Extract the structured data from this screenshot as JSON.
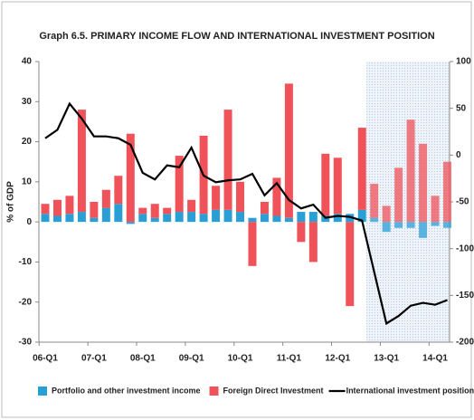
{
  "chart_data": {
    "type": "bar_line",
    "title": "Graph 6.5. PRIMARY INCOME FLOW AND INTERNATIONAL INVESTMENT POSITION",
    "y_label": "% of GDP",
    "categories": [
      "06-Q1",
      null,
      null,
      null,
      "07-Q1",
      null,
      null,
      null,
      "08-Q1",
      null,
      null,
      null,
      "09-Q1",
      null,
      null,
      null,
      "10-Q1",
      null,
      null,
      null,
      "11-Q1",
      null,
      null,
      null,
      "12-Q1",
      null,
      null,
      null,
      "13-Q1",
      null,
      null,
      null,
      "14-Q1",
      null
    ],
    "series": [
      {
        "name": "Portfolio and other investment income",
        "color": "#2a9fd6",
        "values": [
          2,
          1.5,
          2,
          2.5,
          1,
          3.5,
          4.5,
          -0.5,
          2,
          1,
          2,
          2.5,
          2.5,
          2,
          3,
          3,
          2.5,
          1,
          2,
          1.5,
          1,
          2.5,
          2.5,
          1.5,
          2,
          2,
          3,
          1,
          -2.5,
          -1.5,
          -1.5,
          -4,
          -1,
          -1.5
        ]
      },
      {
        "name": "Foreign Direct Investment",
        "color": "#f0525a",
        "values": [
          2.5,
          4,
          4.5,
          25.5,
          4,
          4.5,
          7,
          22,
          1.5,
          3.5,
          1.5,
          14,
          3,
          19.5,
          6,
          25,
          7.5,
          -11,
          3,
          9.5,
          33.5,
          -5,
          -10,
          15.5,
          14,
          -21,
          20.5,
          8.5,
          4,
          13.5,
          25.5,
          19.5,
          6.5,
          15
        ]
      },
      {
        "name": "International investment position (rhs)",
        "color": "#000000",
        "axis": "y2",
        "values": [
          18,
          27,
          55,
          39,
          20,
          20,
          18,
          11,
          -19,
          -26,
          -11,
          -13,
          8,
          -22,
          -29,
          -27,
          -26,
          -20,
          -43,
          -30,
          -48,
          -57,
          -53,
          -67,
          -65,
          -66,
          -70,
          -125,
          -180,
          -172,
          -161,
          -158,
          -160,
          -155
        ]
      }
    ],
    "ylim": [
      -30,
      40
    ],
    "yticks": [
      -30,
      -20,
      -10,
      0,
      10,
      20,
      30,
      40
    ],
    "y2lim": [
      -200,
      100
    ],
    "y2ticks": [
      -200,
      -150,
      -100,
      -50,
      0,
      50,
      100
    ]
  }
}
